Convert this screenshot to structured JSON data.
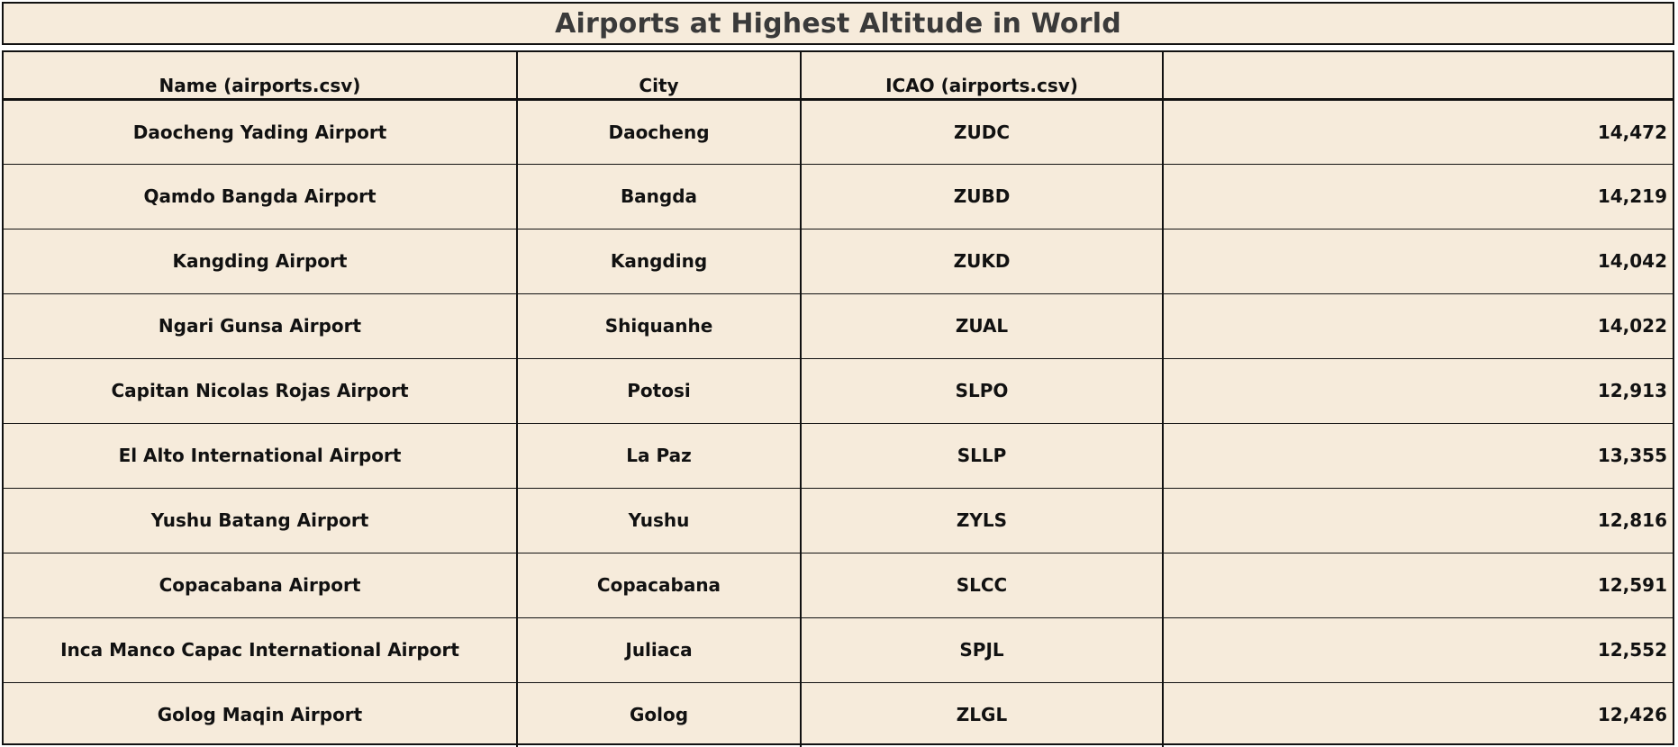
{
  "chart_data": {
    "type": "table",
    "title": "Airports at Highest Altitude in World",
    "columns": [
      "Name (airports.csv)",
      "City",
      "ICAO (airports.csv)",
      ""
    ],
    "rows": [
      {
        "name": "Daocheng Yading Airport",
        "city": "Daocheng",
        "icao": "ZUDC",
        "altitude": "14,472"
      },
      {
        "name": "Qamdo Bangda Airport",
        "city": "Bangda",
        "icao": "ZUBD",
        "altitude": "14,219"
      },
      {
        "name": "Kangding Airport",
        "city": "Kangding",
        "icao": "ZUKD",
        "altitude": "14,042"
      },
      {
        "name": "Ngari Gunsa Airport",
        "city": "Shiquanhe",
        "icao": "ZUAL",
        "altitude": "14,022"
      },
      {
        "name": "Capitan Nicolas Rojas Airport",
        "city": "Potosi",
        "icao": "SLPO",
        "altitude": "12,913"
      },
      {
        "name": "El Alto International Airport",
        "city": "La Paz",
        "icao": "SLLP",
        "altitude": "13,355"
      },
      {
        "name": "Yushu Batang Airport",
        "city": "Yushu",
        "icao": "ZYLS",
        "altitude": "12,816"
      },
      {
        "name": "Copacabana Airport",
        "city": "Copacabana",
        "icao": "SLCC",
        "altitude": "12,591"
      },
      {
        "name": "Inca Manco Capac International Airport",
        "city": "Juliaca",
        "icao": "SPJL",
        "altitude": "12,552"
      },
      {
        "name": "Golog Maqin Airport",
        "city": "Golog",
        "icao": "ZLGL",
        "altitude": "12,426"
      }
    ]
  },
  "colors": {
    "background": "#f6ebdb",
    "border": "#111111",
    "title": "#3a3a3a"
  }
}
